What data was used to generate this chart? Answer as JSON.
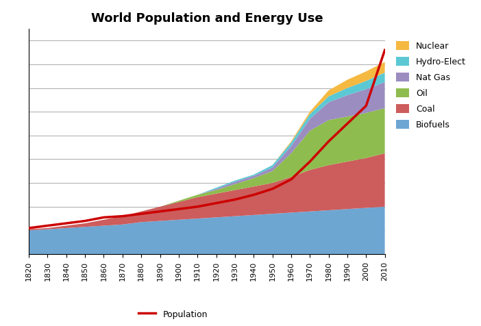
{
  "title": "World Population and Energy Use",
  "years": [
    1820,
    1830,
    1840,
    1850,
    1860,
    1870,
    1880,
    1890,
    1900,
    1910,
    1920,
    1930,
    1940,
    1950,
    1960,
    1970,
    1980,
    1990,
    2000,
    2010
  ],
  "biofuels": [
    0.2,
    0.21,
    0.22,
    0.23,
    0.24,
    0.25,
    0.27,
    0.28,
    0.29,
    0.3,
    0.31,
    0.32,
    0.33,
    0.34,
    0.35,
    0.36,
    0.37,
    0.38,
    0.39,
    0.4
  ],
  "coal": [
    0.01,
    0.01,
    0.02,
    0.03,
    0.05,
    0.07,
    0.09,
    0.12,
    0.15,
    0.18,
    0.2,
    0.22,
    0.24,
    0.26,
    0.3,
    0.35,
    0.38,
    0.4,
    0.42,
    0.45
  ],
  "oil": [
    0.0,
    0.0,
    0.0,
    0.0,
    0.0,
    0.0,
    0.0,
    0.0,
    0.01,
    0.02,
    0.03,
    0.05,
    0.07,
    0.1,
    0.2,
    0.33,
    0.38,
    0.38,
    0.38,
    0.38
  ],
  "nat_gas": [
    0.0,
    0.0,
    0.0,
    0.0,
    0.0,
    0.0,
    0.0,
    0.0,
    0.0,
    0.0,
    0.01,
    0.02,
    0.02,
    0.03,
    0.06,
    0.1,
    0.15,
    0.18,
    0.2,
    0.22
  ],
  "hydro_elect": [
    0.0,
    0.0,
    0.0,
    0.0,
    0.0,
    0.0,
    0.0,
    0.0,
    0.0,
    0.0,
    0.01,
    0.01,
    0.01,
    0.02,
    0.03,
    0.04,
    0.05,
    0.06,
    0.07,
    0.08
  ],
  "nuclear": [
    0.0,
    0.0,
    0.0,
    0.0,
    0.0,
    0.0,
    0.0,
    0.0,
    0.0,
    0.0,
    0.0,
    0.0,
    0.0,
    0.0,
    0.01,
    0.02,
    0.05,
    0.07,
    0.08,
    0.09
  ],
  "population": [
    0.22,
    0.24,
    0.26,
    0.28,
    0.31,
    0.32,
    0.34,
    0.36,
    0.38,
    0.4,
    0.43,
    0.46,
    0.5,
    0.55,
    0.63,
    0.78,
    0.95,
    1.1,
    1.25,
    1.72
  ],
  "colors": {
    "biofuels": "#6ea6d2",
    "coal": "#cd5c5c",
    "oil": "#8fbc4e",
    "nat_gas": "#9b8dc0",
    "hydro_elect": "#5bc8d4",
    "nuclear": "#f5b942"
  },
  "pop_color": "#cc0000",
  "pop_label": "Population",
  "legend_labels": [
    "Nuclear",
    "Hydro-Elect",
    "Nat Gas",
    "Oil",
    "Coal",
    "Biofuels"
  ],
  "legend_colors": [
    "#f5b942",
    "#5bc8d4",
    "#9b8dc0",
    "#8fbc4e",
    "#cd5c5c",
    "#6ea6d2"
  ],
  "ylim": [
    0,
    1.9
  ],
  "figsize": [
    7.02,
    4.77
  ],
  "dpi": 100,
  "grid_color": "#aaaaaa",
  "grid_lines_y": [
    0.2,
    0.4,
    0.6,
    0.8,
    1.0,
    1.2,
    1.4,
    1.6,
    1.8
  ]
}
